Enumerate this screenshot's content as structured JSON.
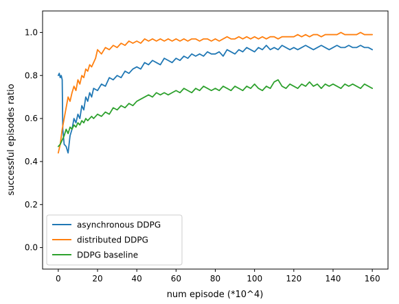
{
  "chart_data": {
    "type": "line",
    "xlabel": "num episode (*10^4)",
    "ylabel": "successful episodes ratio",
    "xlim": [
      -8,
      168
    ],
    "ylim": [
      -0.1,
      1.1
    ],
    "xticks": [
      "0",
      "20",
      "40",
      "60",
      "80",
      "100",
      "120",
      "140",
      "160"
    ],
    "yticks": [
      "0.0",
      "0.2",
      "0.4",
      "0.6",
      "0.8",
      "1.0"
    ],
    "grid": false,
    "legend_position": "lower-left",
    "series": [
      {
        "name": "asynchronous DDPG",
        "color": "#1f77b4",
        "points": [
          [
            0,
            0.8
          ],
          [
            0.5,
            0.81
          ],
          [
            1,
            0.79
          ],
          [
            1.5,
            0.8
          ],
          [
            2,
            0.78
          ],
          [
            2.3,
            0.55
          ],
          [
            3,
            0.48
          ],
          [
            4,
            0.47
          ],
          [
            5,
            0.44
          ],
          [
            6,
            0.52
          ],
          [
            7,
            0.55
          ],
          [
            8,
            0.6
          ],
          [
            9,
            0.58
          ],
          [
            10,
            0.62
          ],
          [
            11,
            0.6
          ],
          [
            12,
            0.66
          ],
          [
            13,
            0.64
          ],
          [
            14,
            0.7
          ],
          [
            15,
            0.68
          ],
          [
            16,
            0.72
          ],
          [
            17,
            0.7
          ],
          [
            18,
            0.74
          ],
          [
            20,
            0.73
          ],
          [
            22,
            0.76
          ],
          [
            24,
            0.75
          ],
          [
            26,
            0.79
          ],
          [
            28,
            0.78
          ],
          [
            30,
            0.8
          ],
          [
            32,
            0.79
          ],
          [
            34,
            0.82
          ],
          [
            36,
            0.81
          ],
          [
            38,
            0.83
          ],
          [
            40,
            0.84
          ],
          [
            42,
            0.83
          ],
          [
            44,
            0.86
          ],
          [
            46,
            0.85
          ],
          [
            48,
            0.87
          ],
          [
            50,
            0.86
          ],
          [
            52,
            0.85
          ],
          [
            54,
            0.88
          ],
          [
            56,
            0.87
          ],
          [
            58,
            0.86
          ],
          [
            60,
            0.88
          ],
          [
            62,
            0.87
          ],
          [
            64,
            0.89
          ],
          [
            66,
            0.88
          ],
          [
            68,
            0.9
          ],
          [
            70,
            0.89
          ],
          [
            72,
            0.9
          ],
          [
            74,
            0.89
          ],
          [
            76,
            0.91
          ],
          [
            78,
            0.9
          ],
          [
            80,
            0.9
          ],
          [
            82,
            0.91
          ],
          [
            84,
            0.89
          ],
          [
            86,
            0.92
          ],
          [
            88,
            0.91
          ],
          [
            90,
            0.9
          ],
          [
            92,
            0.92
          ],
          [
            94,
            0.91
          ],
          [
            96,
            0.93
          ],
          [
            98,
            0.92
          ],
          [
            100,
            0.91
          ],
          [
            102,
            0.93
          ],
          [
            104,
            0.92
          ],
          [
            106,
            0.94
          ],
          [
            108,
            0.92
          ],
          [
            110,
            0.93
          ],
          [
            112,
            0.92
          ],
          [
            114,
            0.94
          ],
          [
            116,
            0.93
          ],
          [
            118,
            0.92
          ],
          [
            120,
            0.93
          ],
          [
            122,
            0.92
          ],
          [
            124,
            0.93
          ],
          [
            126,
            0.94
          ],
          [
            128,
            0.93
          ],
          [
            130,
            0.92
          ],
          [
            132,
            0.93
          ],
          [
            134,
            0.94
          ],
          [
            136,
            0.93
          ],
          [
            138,
            0.92
          ],
          [
            140,
            0.93
          ],
          [
            142,
            0.94
          ],
          [
            144,
            0.93
          ],
          [
            146,
            0.93
          ],
          [
            148,
            0.94
          ],
          [
            150,
            0.93
          ],
          [
            152,
            0.93
          ],
          [
            154,
            0.94
          ],
          [
            156,
            0.93
          ],
          [
            158,
            0.93
          ],
          [
            160,
            0.92
          ]
        ]
      },
      {
        "name": "distributed DDPG",
        "color": "#ff7f0e",
        "points": [
          [
            0,
            0.44
          ],
          [
            1,
            0.48
          ],
          [
            2,
            0.55
          ],
          [
            3,
            0.6
          ],
          [
            4,
            0.65
          ],
          [
            5,
            0.7
          ],
          [
            6,
            0.68
          ],
          [
            7,
            0.72
          ],
          [
            8,
            0.75
          ],
          [
            9,
            0.73
          ],
          [
            10,
            0.78
          ],
          [
            11,
            0.76
          ],
          [
            12,
            0.8
          ],
          [
            13,
            0.79
          ],
          [
            14,
            0.83
          ],
          [
            15,
            0.82
          ],
          [
            16,
            0.85
          ],
          [
            17,
            0.84
          ],
          [
            18,
            0.86
          ],
          [
            19,
            0.88
          ],
          [
            20,
            0.92
          ],
          [
            22,
            0.9
          ],
          [
            24,
            0.93
          ],
          [
            26,
            0.92
          ],
          [
            28,
            0.94
          ],
          [
            30,
            0.93
          ],
          [
            32,
            0.95
          ],
          [
            34,
            0.94
          ],
          [
            36,
            0.96
          ],
          [
            38,
            0.95
          ],
          [
            40,
            0.96
          ],
          [
            42,
            0.95
          ],
          [
            44,
            0.97
          ],
          [
            46,
            0.96
          ],
          [
            48,
            0.97
          ],
          [
            50,
            0.96
          ],
          [
            52,
            0.97
          ],
          [
            54,
            0.96
          ],
          [
            56,
            0.97
          ],
          [
            58,
            0.96
          ],
          [
            60,
            0.97
          ],
          [
            62,
            0.96
          ],
          [
            64,
            0.97
          ],
          [
            66,
            0.96
          ],
          [
            68,
            0.97
          ],
          [
            70,
            0.97
          ],
          [
            72,
            0.96
          ],
          [
            74,
            0.97
          ],
          [
            76,
            0.97
          ],
          [
            78,
            0.96
          ],
          [
            80,
            0.97
          ],
          [
            82,
            0.96
          ],
          [
            84,
            0.97
          ],
          [
            86,
            0.98
          ],
          [
            88,
            0.97
          ],
          [
            90,
            0.97
          ],
          [
            92,
            0.98
          ],
          [
            94,
            0.97
          ],
          [
            96,
            0.98
          ],
          [
            98,
            0.97
          ],
          [
            100,
            0.98
          ],
          [
            102,
            0.97
          ],
          [
            104,
            0.98
          ],
          [
            106,
            0.97
          ],
          [
            108,
            0.98
          ],
          [
            110,
            0.98
          ],
          [
            112,
            0.97
          ],
          [
            114,
            0.98
          ],
          [
            116,
            0.98
          ],
          [
            118,
            0.98
          ],
          [
            120,
            0.98
          ],
          [
            122,
            0.99
          ],
          [
            124,
            0.98
          ],
          [
            126,
            0.99
          ],
          [
            128,
            0.98
          ],
          [
            130,
            0.99
          ],
          [
            132,
            0.99
          ],
          [
            134,
            0.98
          ],
          [
            136,
            0.99
          ],
          [
            138,
            0.99
          ],
          [
            140,
            0.99
          ],
          [
            142,
            0.99
          ],
          [
            144,
            1.0
          ],
          [
            146,
            0.99
          ],
          [
            148,
            0.99
          ],
          [
            150,
            0.99
          ],
          [
            152,
            0.99
          ],
          [
            154,
            1.0
          ],
          [
            156,
            0.99
          ],
          [
            158,
            0.99
          ],
          [
            160,
            0.99
          ]
        ]
      },
      {
        "name": "DDPG baseline",
        "color": "#2ca02c",
        "points": [
          [
            0,
            0.47
          ],
          [
            1,
            0.48
          ],
          [
            2,
            0.5
          ],
          [
            3,
            0.52
          ],
          [
            4,
            0.55
          ],
          [
            5,
            0.53
          ],
          [
            6,
            0.56
          ],
          [
            7,
            0.55
          ],
          [
            8,
            0.57
          ],
          [
            9,
            0.56
          ],
          [
            10,
            0.58
          ],
          [
            11,
            0.57
          ],
          [
            12,
            0.59
          ],
          [
            13,
            0.58
          ],
          [
            14,
            0.6
          ],
          [
            15,
            0.59
          ],
          [
            16,
            0.6
          ],
          [
            17,
            0.61
          ],
          [
            18,
            0.6
          ],
          [
            20,
            0.62
          ],
          [
            22,
            0.61
          ],
          [
            24,
            0.63
          ],
          [
            26,
            0.62
          ],
          [
            28,
            0.65
          ],
          [
            30,
            0.64
          ],
          [
            32,
            0.66
          ],
          [
            34,
            0.65
          ],
          [
            36,
            0.67
          ],
          [
            38,
            0.66
          ],
          [
            40,
            0.68
          ],
          [
            42,
            0.69
          ],
          [
            44,
            0.7
          ],
          [
            46,
            0.71
          ],
          [
            48,
            0.7
          ],
          [
            50,
            0.72
          ],
          [
            52,
            0.71
          ],
          [
            54,
            0.72
          ],
          [
            56,
            0.71
          ],
          [
            58,
            0.72
          ],
          [
            60,
            0.73
          ],
          [
            62,
            0.72
          ],
          [
            64,
            0.74
          ],
          [
            66,
            0.73
          ],
          [
            68,
            0.72
          ],
          [
            70,
            0.74
          ],
          [
            72,
            0.73
          ],
          [
            74,
            0.75
          ],
          [
            76,
            0.74
          ],
          [
            78,
            0.73
          ],
          [
            80,
            0.74
          ],
          [
            82,
            0.73
          ],
          [
            84,
            0.75
          ],
          [
            86,
            0.74
          ],
          [
            88,
            0.73
          ],
          [
            90,
            0.75
          ],
          [
            92,
            0.74
          ],
          [
            94,
            0.73
          ],
          [
            96,
            0.75
          ],
          [
            98,
            0.74
          ],
          [
            100,
            0.76
          ],
          [
            102,
            0.74
          ],
          [
            104,
            0.73
          ],
          [
            106,
            0.75
          ],
          [
            108,
            0.74
          ],
          [
            110,
            0.77
          ],
          [
            112,
            0.78
          ],
          [
            114,
            0.75
          ],
          [
            116,
            0.74
          ],
          [
            118,
            0.76
          ],
          [
            120,
            0.75
          ],
          [
            122,
            0.74
          ],
          [
            124,
            0.76
          ],
          [
            126,
            0.75
          ],
          [
            128,
            0.77
          ],
          [
            130,
            0.75
          ],
          [
            132,
            0.76
          ],
          [
            134,
            0.74
          ],
          [
            136,
            0.76
          ],
          [
            138,
            0.75
          ],
          [
            140,
            0.76
          ],
          [
            142,
            0.75
          ],
          [
            144,
            0.74
          ],
          [
            146,
            0.76
          ],
          [
            148,
            0.75
          ],
          [
            150,
            0.76
          ],
          [
            152,
            0.75
          ],
          [
            154,
            0.74
          ],
          [
            156,
            0.76
          ],
          [
            158,
            0.75
          ],
          [
            160,
            0.74
          ]
        ]
      }
    ]
  }
}
